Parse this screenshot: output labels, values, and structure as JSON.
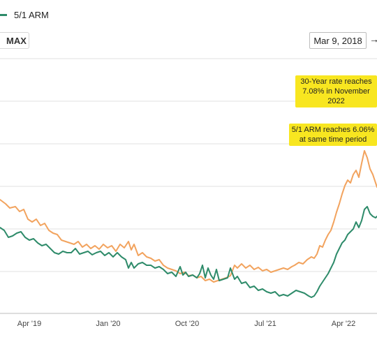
{
  "legend": {
    "label": "5/1 ARM",
    "color": "#2e8b6a"
  },
  "controls": {
    "range_max": "MAX",
    "start_date": "Mar 9, 2018",
    "arrow": "→"
  },
  "chart_data": {
    "type": "line",
    "x_ticks": [
      "Apr '19",
      "Jan '20",
      "Oct '20",
      "Jul '21",
      "Apr '22"
    ],
    "gridlines": 7,
    "annotations": [
      {
        "lines": [
          "30-Year rate reaches",
          "7.08% in November",
          "2022"
        ],
        "series": "30-Year"
      },
      {
        "lines": [
          "5/1 ARM reaches 6.06%",
          "at same time period"
        ],
        "series": "5/1 ARM"
      }
    ],
    "series": [
      {
        "id": "30-Year",
        "color": "#f2a35e",
        "values": [
          [
            0,
            286
          ],
          [
            8,
            292
          ],
          [
            14,
            298
          ],
          [
            22,
            296
          ],
          [
            28,
            303
          ],
          [
            34,
            300
          ],
          [
            40,
            314
          ],
          [
            46,
            318
          ],
          [
            52,
            314
          ],
          [
            58,
            323
          ],
          [
            64,
            320
          ],
          [
            70,
            330
          ],
          [
            76,
            334
          ],
          [
            82,
            336
          ],
          [
            88,
            344
          ],
          [
            94,
            346
          ],
          [
            100,
            348
          ],
          [
            106,
            350
          ],
          [
            112,
            346
          ],
          [
            118,
            354
          ],
          [
            124,
            350
          ],
          [
            130,
            356
          ],
          [
            136,
            352
          ],
          [
            142,
            357
          ],
          [
            148,
            350
          ],
          [
            154,
            355
          ],
          [
            160,
            352
          ],
          [
            166,
            360
          ],
          [
            172,
            350
          ],
          [
            178,
            355
          ],
          [
            184,
            346
          ],
          [
            188,
            358
          ],
          [
            192,
            350
          ],
          [
            198,
            366
          ],
          [
            204,
            362
          ],
          [
            210,
            368
          ],
          [
            216,
            370
          ],
          [
            222,
            374
          ],
          [
            228,
            372
          ],
          [
            234,
            380
          ],
          [
            240,
            384
          ],
          [
            246,
            386
          ],
          [
            252,
            388
          ],
          [
            258,
            392
          ],
          [
            264,
            390
          ],
          [
            270,
            395
          ],
          [
            276,
            394
          ],
          [
            282,
            398
          ],
          [
            288,
            396
          ],
          [
            294,
            402
          ],
          [
            300,
            400
          ],
          [
            306,
            404
          ],
          [
            312,
            402
          ],
          [
            318,
            400
          ],
          [
            324,
            398
          ],
          [
            330,
            395
          ],
          [
            336,
            380
          ],
          [
            340,
            384
          ],
          [
            346,
            378
          ],
          [
            352,
            384
          ],
          [
            358,
            380
          ],
          [
            364,
            386
          ],
          [
            370,
            383
          ],
          [
            376,
            388
          ],
          [
            382,
            386
          ],
          [
            388,
            390
          ],
          [
            394,
            388
          ],
          [
            400,
            386
          ],
          [
            406,
            384
          ],
          [
            412,
            386
          ],
          [
            418,
            382
          ],
          [
            422,
            380
          ],
          [
            428,
            376
          ],
          [
            434,
            378
          ],
          [
            440,
            372
          ],
          [
            446,
            368
          ],
          [
            450,
            370
          ],
          [
            454,
            364
          ],
          [
            458,
            352
          ],
          [
            462,
            354
          ],
          [
            466,
            344
          ],
          [
            470,
            336
          ],
          [
            474,
            330
          ],
          [
            478,
            318
          ],
          [
            482,
            304
          ],
          [
            486,
            292
          ],
          [
            490,
            278
          ],
          [
            494,
            266
          ],
          [
            498,
            258
          ],
          [
            502,
            262
          ],
          [
            506,
            250
          ],
          [
            510,
            244
          ],
          [
            514,
            254
          ],
          [
            518,
            234
          ],
          [
            522,
            216
          ],
          [
            526,
            226
          ],
          [
            530,
            242
          ],
          [
            534,
            250
          ],
          [
            538,
            262
          ],
          [
            540,
            268
          ]
        ]
      },
      {
        "id": "5/1 ARM",
        "color": "#2e8b6a",
        "values": [
          [
            0,
            326
          ],
          [
            6,
            330
          ],
          [
            12,
            340
          ],
          [
            18,
            338
          ],
          [
            24,
            334
          ],
          [
            30,
            332
          ],
          [
            36,
            340
          ],
          [
            42,
            344
          ],
          [
            48,
            342
          ],
          [
            54,
            348
          ],
          [
            60,
            352
          ],
          [
            66,
            350
          ],
          [
            72,
            356
          ],
          [
            78,
            362
          ],
          [
            84,
            364
          ],
          [
            90,
            360
          ],
          [
            96,
            362
          ],
          [
            102,
            362
          ],
          [
            108,
            356
          ],
          [
            114,
            364
          ],
          [
            120,
            362
          ],
          [
            126,
            360
          ],
          [
            132,
            365
          ],
          [
            138,
            362
          ],
          [
            144,
            360
          ],
          [
            150,
            366
          ],
          [
            156,
            362
          ],
          [
            162,
            368
          ],
          [
            168,
            362
          ],
          [
            174,
            368
          ],
          [
            180,
            372
          ],
          [
            184,
            384
          ],
          [
            188,
            376
          ],
          [
            192,
            384
          ],
          [
            198,
            378
          ],
          [
            204,
            376
          ],
          [
            210,
            380
          ],
          [
            216,
            380
          ],
          [
            222,
            384
          ],
          [
            228,
            382
          ],
          [
            234,
            386
          ],
          [
            240,
            392
          ],
          [
            246,
            390
          ],
          [
            252,
            396
          ],
          [
            258,
            382
          ],
          [
            262,
            394
          ],
          [
            266,
            390
          ],
          [
            270,
            396
          ],
          [
            276,
            394
          ],
          [
            282,
            398
          ],
          [
            286,
            392
          ],
          [
            290,
            380
          ],
          [
            294,
            398
          ],
          [
            298,
            384
          ],
          [
            302,
            394
          ],
          [
            306,
            400
          ],
          [
            310,
            386
          ],
          [
            314,
            402
          ],
          [
            320,
            400
          ],
          [
            326,
            398
          ],
          [
            330,
            384
          ],
          [
            336,
            400
          ],
          [
            340,
            396
          ],
          [
            346,
            406
          ],
          [
            352,
            404
          ],
          [
            358,
            412
          ],
          [
            364,
            410
          ],
          [
            370,
            416
          ],
          [
            376,
            414
          ],
          [
            382,
            418
          ],
          [
            388,
            420
          ],
          [
            394,
            418
          ],
          [
            400,
            424
          ],
          [
            406,
            422
          ],
          [
            412,
            424
          ],
          [
            418,
            420
          ],
          [
            424,
            416
          ],
          [
            430,
            418
          ],
          [
            436,
            420
          ],
          [
            442,
            424
          ],
          [
            446,
            426
          ],
          [
            450,
            424
          ],
          [
            454,
            418
          ],
          [
            458,
            410
          ],
          [
            462,
            404
          ],
          [
            466,
            398
          ],
          [
            470,
            392
          ],
          [
            474,
            384
          ],
          [
            478,
            376
          ],
          [
            482,
            364
          ],
          [
            486,
            356
          ],
          [
            490,
            348
          ],
          [
            494,
            344
          ],
          [
            498,
            336
          ],
          [
            502,
            332
          ],
          [
            506,
            328
          ],
          [
            510,
            318
          ],
          [
            514,
            326
          ],
          [
            518,
            316
          ],
          [
            522,
            300
          ],
          [
            526,
            296
          ],
          [
            530,
            306
          ],
          [
            534,
            310
          ],
          [
            538,
            312
          ],
          [
            540,
            310
          ]
        ]
      }
    ]
  }
}
